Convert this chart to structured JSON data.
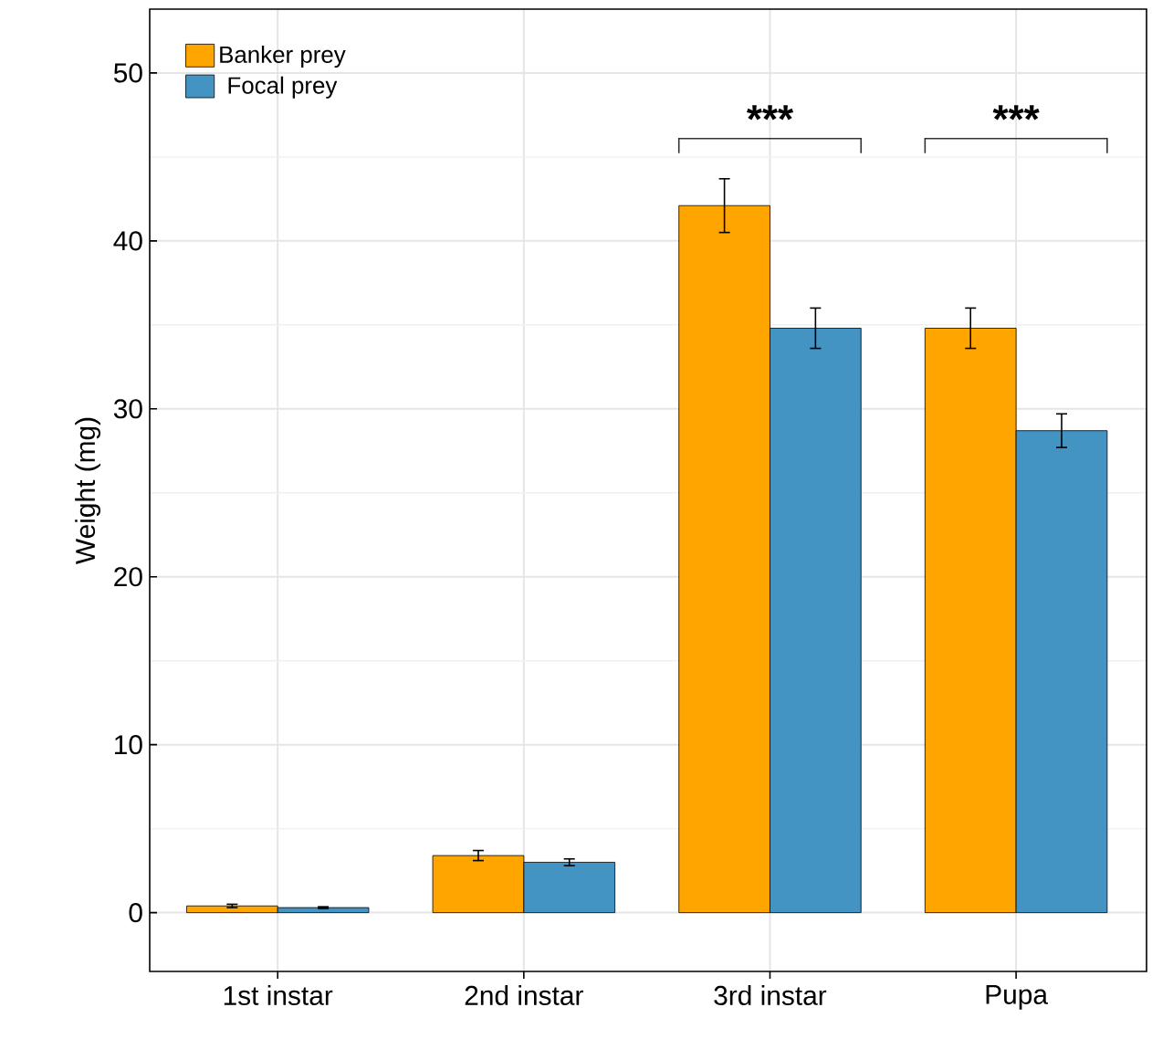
{
  "chart_data": {
    "type": "bar",
    "ylabel": "Weight (mg)",
    "categories": [
      "1st instar",
      "2nd instar",
      "3rd instar",
      "Pupa"
    ],
    "series": [
      {
        "name": "Banker prey",
        "color": "#ffa500",
        "values": [
          0.4,
          3.4,
          42.1,
          34.8
        ],
        "errors": [
          0.1,
          0.3,
          1.6,
          1.2
        ]
      },
      {
        "name": "Focal prey",
        "color": "#4393c3",
        "values": [
          0.3,
          3.0,
          34.8,
          28.7
        ],
        "errors": [
          0.05,
          0.2,
          1.2,
          1.0
        ]
      }
    ],
    "ylim": [
      -3.5,
      53.8
    ],
    "yticks": [
      0,
      10,
      20,
      30,
      40,
      50
    ],
    "grid": true,
    "legend": "top left",
    "annotations": [
      "***",
      "***"
    ]
  }
}
